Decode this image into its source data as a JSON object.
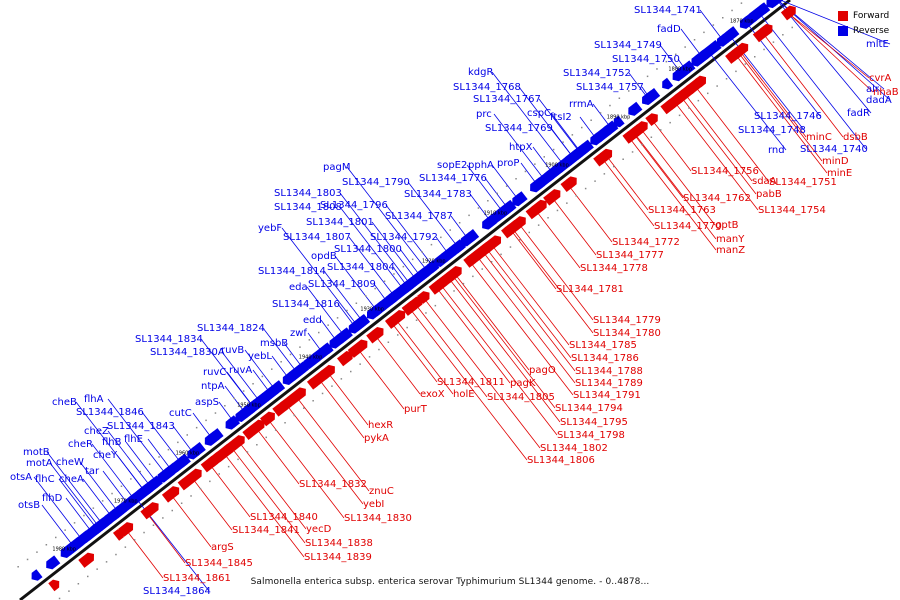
{
  "caption": "Salmonella enterica subsp. enterica serovar Typhimurium SL1344 genome. - 0..4878...",
  "legend": {
    "forward_label": "Forward",
    "reverse_label": "Reverse",
    "forward_color": "#e00000",
    "reverse_color": "#0000e6"
  },
  "ticks": [
    "1870 kbp",
    "1880 kbp",
    "1890 kbp",
    "1900 kbp",
    "1910 kbp",
    "1920 kbp",
    "1930 kbp",
    "1940 kbp",
    "1950 kbp",
    "1960 kbp",
    "1970 kbp",
    "1980 kbp"
  ],
  "reverse_genes": [
    "SL1344_1741",
    "fadD",
    "SL1344_1749",
    "SL1344_1750",
    "SL1344_1752",
    "SL1344_1757",
    "kdgR",
    "SL1344_1768",
    "SL1344_1767",
    "rrmA",
    "cspC",
    "prc",
    "ftsI2",
    "SL1344_1769",
    "htpX",
    "sopE2",
    "pphA",
    "proP",
    "SL1344_1776",
    "pagM",
    "SL1344_1790",
    "SL1344_1803",
    "SL1344_1783",
    "SL1344_1808",
    "SL1344_1796",
    "SL1344_1787",
    "yebF",
    "SL1344_1801",
    "SL1344_1807",
    "SL1344_1792",
    "SL1344_1800",
    "opdB",
    "SL1344_1804",
    "SL1344_1814",
    "eda",
    "SL1344_1809",
    "SL1344_1816",
    "edd",
    "SL1344_1824",
    "zwf",
    "msbB",
    "SL1344_1834",
    "SL1344_1830A",
    "ruvB",
    "yebL",
    "ruvC",
    "ruvA",
    "ntpA",
    "aspS",
    "cheB",
    "flhA",
    "SL1344_1846",
    "SL1344_1843",
    "cutC",
    "cheZ",
    "cheR",
    "flhB",
    "flhE",
    "cheY",
    "motB",
    "cheW",
    "motA",
    "tar",
    "otsA",
    "flhC",
    "cheA",
    "flhD",
    "otsB",
    "SL1344_1746",
    "SL1344_1748",
    "rnd",
    "SL1344_1740",
    "SL1344_1864",
    "mltE",
    "alr",
    "dadA",
    "fadR"
  ],
  "forward_genes": [
    "cvrA",
    "nhaB",
    "minC",
    "dsbB",
    "minD",
    "minE",
    "SL1344_1751",
    "sdaA",
    "SL1344_1756",
    "pabB",
    "SL1344_1754",
    "SL1344_1762",
    "SL1344_1763",
    "gptB",
    "SL1344_1770",
    "manY",
    "manZ",
    "SL1344_1772",
    "SL1344_1777",
    "SL1344_1778",
    "SL1344_1781",
    "SL1344_1779",
    "SL1344_1780",
    "SL1344_1785",
    "SL1344_1786",
    "pagO",
    "SL1344_1788",
    "SL1344_1789",
    "SL1344_1811",
    "pagK",
    "exoX",
    "holE",
    "SL1344_1791",
    "SL1344_1805",
    "SL1344_1794",
    "purT",
    "SL1344_1795",
    "hexR",
    "SL1344_1798",
    "pykA",
    "SL1344_1802",
    "SL1344_1806",
    "SL1344_1832",
    "znuC",
    "yebI",
    "SL1344_1830",
    "SL1344_1840",
    "SL1344_1841",
    "yecD",
    "SL1344_1838",
    "argS",
    "SL1344_1839",
    "SL1344_1845",
    "SL1344_1861"
  ]
}
